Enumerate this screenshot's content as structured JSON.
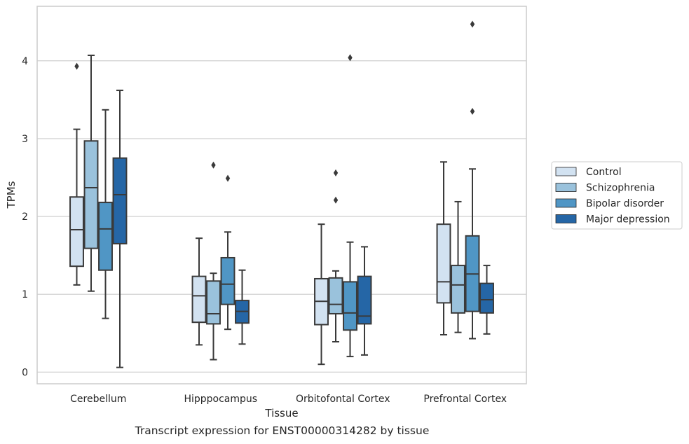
{
  "caption": "Transcript expression for ENST00000314282 by tissue",
  "chart_data": {
    "type": "box",
    "xlabel": "Tissue",
    "ylabel": "TPMs",
    "ylim": [
      -0.15,
      4.7
    ],
    "yticks": [
      0,
      1,
      2,
      3,
      4
    ],
    "grid": "horizontal",
    "legend_placement": "right",
    "categories": [
      "Cerebellum",
      "Hipppocampus",
      "Orbitofontal Cortex",
      "Prefrontal Cortex"
    ],
    "series": [
      {
        "name": "Control",
        "color": "#d2e2f1",
        "boxes": [
          {
            "whislo": 1.12,
            "q1": 1.36,
            "med": 1.83,
            "q3": 2.25,
            "whishi": 3.12,
            "fliers": [
              3.93
            ]
          },
          {
            "whislo": 0.35,
            "q1": 0.64,
            "med": 0.98,
            "q3": 1.23,
            "whishi": 1.72,
            "fliers": []
          },
          {
            "whislo": 0.1,
            "q1": 0.61,
            "med": 0.91,
            "q3": 1.2,
            "whishi": 1.9,
            "fliers": []
          },
          {
            "whislo": 0.48,
            "q1": 0.89,
            "med": 1.16,
            "q3": 1.9,
            "whishi": 2.7,
            "fliers": []
          }
        ]
      },
      {
        "name": "Schizophrenia",
        "color": "#9ac2dc",
        "boxes": [
          {
            "whislo": 1.04,
            "q1": 1.59,
            "med": 2.37,
            "q3": 2.97,
            "whishi": 4.07,
            "fliers": []
          },
          {
            "whislo": 0.16,
            "q1": 0.62,
            "med": 0.75,
            "q3": 1.17,
            "whishi": 1.27,
            "fliers": [
              2.66
            ]
          },
          {
            "whislo": 0.39,
            "q1": 0.75,
            "med": 0.87,
            "q3": 1.21,
            "whishi": 1.3,
            "fliers": [
              2.56,
              2.21
            ]
          },
          {
            "whislo": 0.51,
            "q1": 0.76,
            "med": 1.12,
            "q3": 1.37,
            "whishi": 2.19,
            "fliers": []
          }
        ]
      },
      {
        "name": "Bipolar disorder",
        "color": "#5096c5",
        "boxes": [
          {
            "whislo": 0.69,
            "q1": 1.31,
            "med": 1.84,
            "q3": 2.18,
            "whishi": 3.37,
            "fliers": []
          },
          {
            "whislo": 0.55,
            "q1": 0.87,
            "med": 1.13,
            "q3": 1.47,
            "whishi": 1.8,
            "fliers": [
              2.49
            ]
          },
          {
            "whislo": 0.2,
            "q1": 0.54,
            "med": 0.76,
            "q3": 1.16,
            "whishi": 1.67,
            "fliers": [
              4.04
            ]
          },
          {
            "whislo": 0.43,
            "q1": 0.78,
            "med": 1.26,
            "q3": 1.75,
            "whishi": 2.61,
            "fliers": [
              3.35,
              4.47
            ]
          }
        ]
      },
      {
        "name": "Major depression",
        "color": "#2566a6",
        "boxes": [
          {
            "whislo": 0.06,
            "q1": 1.65,
            "med": 2.28,
            "q3": 2.75,
            "whishi": 3.62,
            "fliers": []
          },
          {
            "whislo": 0.36,
            "q1": 0.63,
            "med": 0.78,
            "q3": 0.92,
            "whishi": 1.31,
            "fliers": []
          },
          {
            "whislo": 0.22,
            "q1": 0.62,
            "med": 0.72,
            "q3": 1.23,
            "whishi": 1.61,
            "fliers": []
          },
          {
            "whislo": 0.49,
            "q1": 0.76,
            "med": 0.93,
            "q3": 1.14,
            "whishi": 1.37,
            "fliers": []
          }
        ]
      }
    ]
  }
}
